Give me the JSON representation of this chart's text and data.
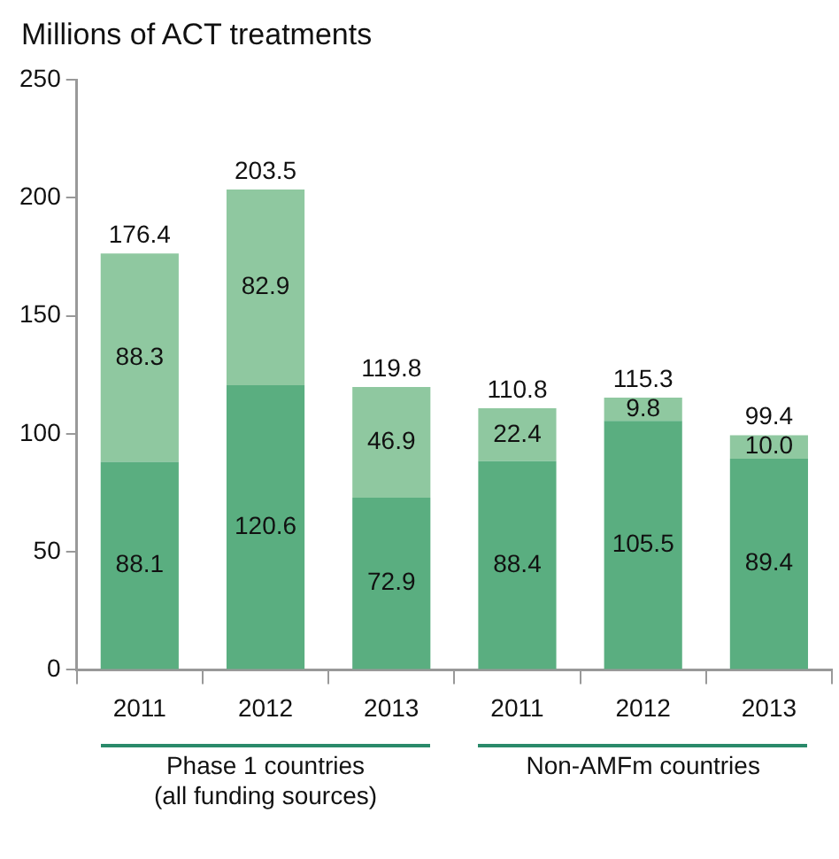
{
  "chart_data": {
    "type": "bar",
    "stacked": true,
    "ylabel": "Millions of ACT treatments",
    "categories": [
      "2011",
      "2012",
      "2013",
      "2011",
      "2012",
      "2013"
    ],
    "series": [
      {
        "color": "#5aae80",
        "values": [
          88.1,
          120.6,
          72.9,
          88.4,
          105.5,
          89.4
        ],
        "value_labels": [
          "88.1",
          "120.6",
          "72.9",
          "88.4",
          "105.5",
          "89.4"
        ]
      },
      {
        "color": "#8fc8a0",
        "values": [
          88.3,
          82.9,
          46.9,
          22.4,
          9.8,
          10.0
        ],
        "value_labels": [
          "88.3",
          "82.9",
          "46.9",
          "22.4",
          "9.8",
          "10.0"
        ]
      }
    ],
    "totals": [
      "176.4",
      "203.5",
      "119.8",
      "110.8",
      "115.3",
      "99.4"
    ],
    "ylim": [
      0,
      250
    ],
    "yticks": [
      0,
      50,
      100,
      150,
      200,
      250
    ],
    "annotations": [
      "Phase 1 countries\n(all funding sources)",
      "Non-AMFm countries"
    ]
  }
}
